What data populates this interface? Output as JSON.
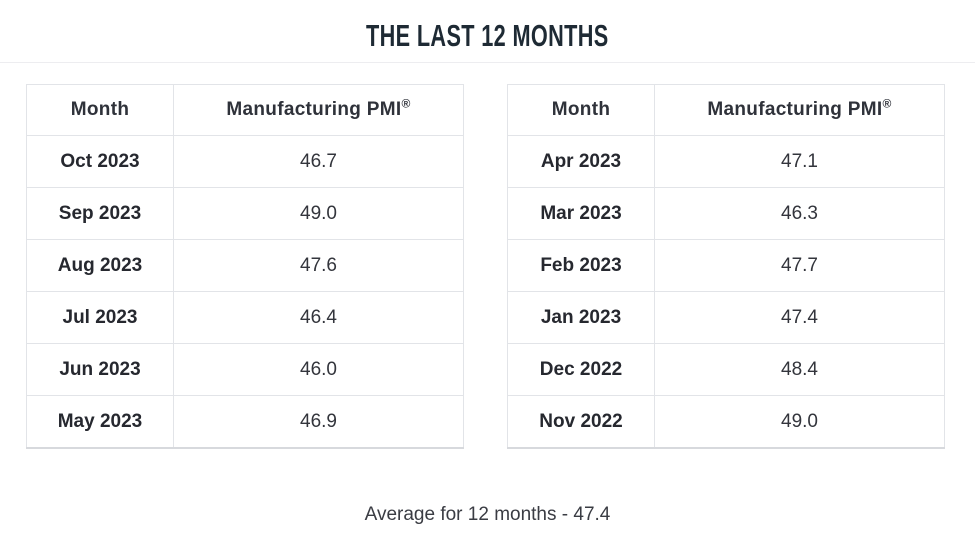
{
  "title": "THE LAST 12 MONTHS",
  "tables": [
    {
      "headers": {
        "month": "Month",
        "pmi": "Manufacturing PMI",
        "reg": "®"
      },
      "rows": [
        {
          "month": "Oct 2023",
          "pmi": "46.7"
        },
        {
          "month": "Sep 2023",
          "pmi": "49.0"
        },
        {
          "month": "Aug 2023",
          "pmi": "47.6"
        },
        {
          "month": "Jul 2023",
          "pmi": "46.4"
        },
        {
          "month": "Jun 2023",
          "pmi": "46.0"
        },
        {
          "month": "May 2023",
          "pmi": "46.9"
        }
      ]
    },
    {
      "headers": {
        "month": "Month",
        "pmi": "Manufacturing PMI",
        "reg": "®"
      },
      "rows": [
        {
          "month": "Apr 2023",
          "pmi": "47.1"
        },
        {
          "month": "Mar 2023",
          "pmi": "46.3"
        },
        {
          "month": "Feb 2023",
          "pmi": "47.7"
        },
        {
          "month": "Jan 2023",
          "pmi": "47.4"
        },
        {
          "month": "Dec 2022",
          "pmi": "48.4"
        },
        {
          "month": "Nov 2022",
          "pmi": "49.0"
        }
      ]
    }
  ],
  "footer": {
    "average": "Average for 12 months - 47.4"
  },
  "chart_data": {
    "type": "table",
    "title": "THE LAST 12 MONTHS",
    "columns": [
      "Month",
      "Manufacturing PMI®"
    ],
    "rows": [
      [
        "Oct 2023",
        46.7
      ],
      [
        "Sep 2023",
        49.0
      ],
      [
        "Aug 2023",
        47.6
      ],
      [
        "Jul 2023",
        46.4
      ],
      [
        "Jun 2023",
        46.0
      ],
      [
        "May 2023",
        46.9
      ],
      [
        "Apr 2023",
        47.1
      ],
      [
        "Mar 2023",
        46.3
      ],
      [
        "Feb 2023",
        47.7
      ],
      [
        "Jan 2023",
        47.4
      ],
      [
        "Dec 2022",
        48.4
      ],
      [
        "Nov 2022",
        49.0
      ]
    ],
    "annotation": "Average for 12 months - 47.4",
    "average": 47.4,
    "layout": "two side-by-side tables, newest months in left table"
  }
}
